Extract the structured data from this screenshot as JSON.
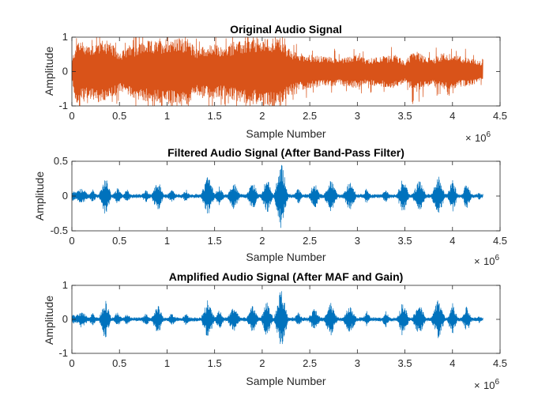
{
  "chart_data": [
    {
      "type": "line",
      "title": "Original Audio Signal",
      "xlabel": "Sample Number",
      "ylabel": "Amplitude",
      "xlim": [
        0,
        4.5
      ],
      "ylim": [
        -1,
        1
      ],
      "x_exponent_label": "10",
      "x_exponent_power": "6",
      "xticks": [
        0,
        0.5,
        1,
        1.5,
        2,
        2.5,
        3,
        3.5,
        4,
        4.5
      ],
      "xtick_labels": [
        "0",
        "0.5",
        "1",
        "1.5",
        "2",
        "2.5",
        "3",
        "3.5",
        "4",
        "4.5"
      ],
      "yticks": [
        -1,
        0,
        1
      ],
      "ytick_labels": [
        "-1",
        "0",
        "1"
      ],
      "series_color": "#D95319",
      "envelope": {
        "x": [
          0.0,
          0.05,
          0.1,
          0.2,
          0.3,
          0.4,
          0.5,
          0.6,
          0.7,
          0.8,
          0.9,
          1.0,
          1.1,
          1.2,
          1.3,
          1.4,
          1.5,
          1.6,
          1.7,
          1.8,
          1.9,
          2.0,
          2.1,
          2.2,
          2.3,
          2.4,
          2.5,
          2.6,
          2.7,
          2.8,
          2.9,
          3.0,
          3.1,
          3.2,
          3.3,
          3.4,
          3.5,
          3.6,
          3.7,
          3.8,
          3.9,
          4.0,
          4.1,
          4.2,
          4.3
        ],
        "amplitude": [
          0.3,
          1.0,
          0.9,
          0.8,
          0.95,
          0.85,
          0.6,
          0.7,
          0.85,
          0.9,
          0.9,
          1.0,
          0.95,
          1.0,
          0.7,
          0.75,
          0.8,
          0.7,
          0.85,
          0.9,
          0.95,
          0.95,
          1.0,
          1.0,
          0.6,
          0.55,
          0.5,
          0.45,
          0.45,
          0.4,
          0.45,
          0.5,
          0.35,
          0.45,
          0.45,
          0.5,
          0.3,
          0.65,
          0.45,
          0.4,
          0.55,
          0.5,
          0.45,
          0.4,
          0.3
        ]
      }
    },
    {
      "type": "line",
      "title": "Filtered Audio Signal (After Band-Pass Filter)",
      "xlabel": "Sample Number",
      "ylabel": "Amplitude",
      "xlim": [
        0,
        4.5
      ],
      "ylim": [
        -0.5,
        0.5
      ],
      "x_exponent_label": "10",
      "x_exponent_power": "6",
      "xticks": [
        0,
        0.5,
        1,
        1.5,
        2,
        2.5,
        3,
        3.5,
        4,
        4.5
      ],
      "xtick_labels": [
        "0",
        "0.5",
        "1",
        "1.5",
        "2",
        "2.5",
        "3",
        "3.5",
        "4",
        "4.5"
      ],
      "yticks": [
        -0.5,
        0,
        0.5
      ],
      "ytick_labels": [
        "-0.5",
        "0",
        "0.5"
      ],
      "series_color": "#0072BD",
      "bursts": [
        {
          "x": 0.02,
          "w": 0.06,
          "a": 0.08
        },
        {
          "x": 0.1,
          "w": 0.1,
          "a": 0.12
        },
        {
          "x": 0.22,
          "w": 0.05,
          "a": 0.1
        },
        {
          "x": 0.35,
          "w": 0.07,
          "a": 0.3
        },
        {
          "x": 0.48,
          "w": 0.06,
          "a": 0.12
        },
        {
          "x": 0.58,
          "w": 0.05,
          "a": 0.1
        },
        {
          "x": 0.78,
          "w": 0.06,
          "a": 0.1
        },
        {
          "x": 0.9,
          "w": 0.07,
          "a": 0.25
        },
        {
          "x": 1.05,
          "w": 0.06,
          "a": 0.1
        },
        {
          "x": 1.2,
          "w": 0.05,
          "a": 0.1
        },
        {
          "x": 1.43,
          "w": 0.08,
          "a": 0.3
        },
        {
          "x": 1.55,
          "w": 0.06,
          "a": 0.15
        },
        {
          "x": 1.7,
          "w": 0.08,
          "a": 0.2
        },
        {
          "x": 1.9,
          "w": 0.07,
          "a": 0.22
        },
        {
          "x": 2.05,
          "w": 0.07,
          "a": 0.28
        },
        {
          "x": 2.2,
          "w": 0.08,
          "a": 0.5
        },
        {
          "x": 2.38,
          "w": 0.05,
          "a": 0.12
        },
        {
          "x": 2.55,
          "w": 0.07,
          "a": 0.2
        },
        {
          "x": 2.72,
          "w": 0.08,
          "a": 0.25
        },
        {
          "x": 2.92,
          "w": 0.08,
          "a": 0.22
        },
        {
          "x": 3.1,
          "w": 0.05,
          "a": 0.12
        },
        {
          "x": 3.3,
          "w": 0.05,
          "a": 0.12
        },
        {
          "x": 3.48,
          "w": 0.07,
          "a": 0.28
        },
        {
          "x": 3.65,
          "w": 0.08,
          "a": 0.25
        },
        {
          "x": 3.85,
          "w": 0.08,
          "a": 0.3
        },
        {
          "x": 4.0,
          "w": 0.06,
          "a": 0.25
        },
        {
          "x": 4.15,
          "w": 0.06,
          "a": 0.2
        },
        {
          "x": 4.28,
          "w": 0.03,
          "a": 0.06
        }
      ]
    },
    {
      "type": "line",
      "title": "Amplified Audio Signal (After MAF and Gain)",
      "xlabel": "Sample Number",
      "ylabel": "Amplitude",
      "xlim": [
        0,
        4.5
      ],
      "ylim": [
        -1,
        1
      ],
      "x_exponent_label": "10",
      "x_exponent_power": "6",
      "xticks": [
        0,
        0.5,
        1,
        1.5,
        2,
        2.5,
        3,
        3.5,
        4,
        4.5
      ],
      "xtick_labels": [
        "0",
        "0.5",
        "1",
        "1.5",
        "2",
        "2.5",
        "3",
        "3.5",
        "4",
        "4.5"
      ],
      "yticks": [
        -1,
        0,
        1
      ],
      "ytick_labels": [
        "-1",
        "0",
        "1"
      ],
      "series_color": "#0072BD",
      "bursts": [
        {
          "x": 0.02,
          "w": 0.06,
          "a": 0.15
        },
        {
          "x": 0.1,
          "w": 0.1,
          "a": 0.25
        },
        {
          "x": 0.22,
          "w": 0.05,
          "a": 0.2
        },
        {
          "x": 0.35,
          "w": 0.07,
          "a": 0.6
        },
        {
          "x": 0.48,
          "w": 0.06,
          "a": 0.25
        },
        {
          "x": 0.58,
          "w": 0.05,
          "a": 0.2
        },
        {
          "x": 0.78,
          "w": 0.06,
          "a": 0.2
        },
        {
          "x": 0.9,
          "w": 0.07,
          "a": 0.5
        },
        {
          "x": 1.05,
          "w": 0.06,
          "a": 0.2
        },
        {
          "x": 1.2,
          "w": 0.05,
          "a": 0.2
        },
        {
          "x": 1.43,
          "w": 0.08,
          "a": 0.6
        },
        {
          "x": 1.55,
          "w": 0.06,
          "a": 0.3
        },
        {
          "x": 1.7,
          "w": 0.08,
          "a": 0.4
        },
        {
          "x": 1.9,
          "w": 0.07,
          "a": 0.45
        },
        {
          "x": 2.05,
          "w": 0.07,
          "a": 0.55
        },
        {
          "x": 2.2,
          "w": 0.08,
          "a": 0.95
        },
        {
          "x": 2.38,
          "w": 0.05,
          "a": 0.25
        },
        {
          "x": 2.55,
          "w": 0.07,
          "a": 0.4
        },
        {
          "x": 2.72,
          "w": 0.08,
          "a": 0.5
        },
        {
          "x": 2.92,
          "w": 0.08,
          "a": 0.45
        },
        {
          "x": 3.1,
          "w": 0.05,
          "a": 0.25
        },
        {
          "x": 3.3,
          "w": 0.05,
          "a": 0.25
        },
        {
          "x": 3.48,
          "w": 0.07,
          "a": 0.55
        },
        {
          "x": 3.65,
          "w": 0.08,
          "a": 0.5
        },
        {
          "x": 3.85,
          "w": 0.08,
          "a": 0.6
        },
        {
          "x": 4.0,
          "w": 0.06,
          "a": 0.5
        },
        {
          "x": 4.15,
          "w": 0.06,
          "a": 0.4
        },
        {
          "x": 4.28,
          "w": 0.03,
          "a": 0.12
        }
      ]
    }
  ]
}
